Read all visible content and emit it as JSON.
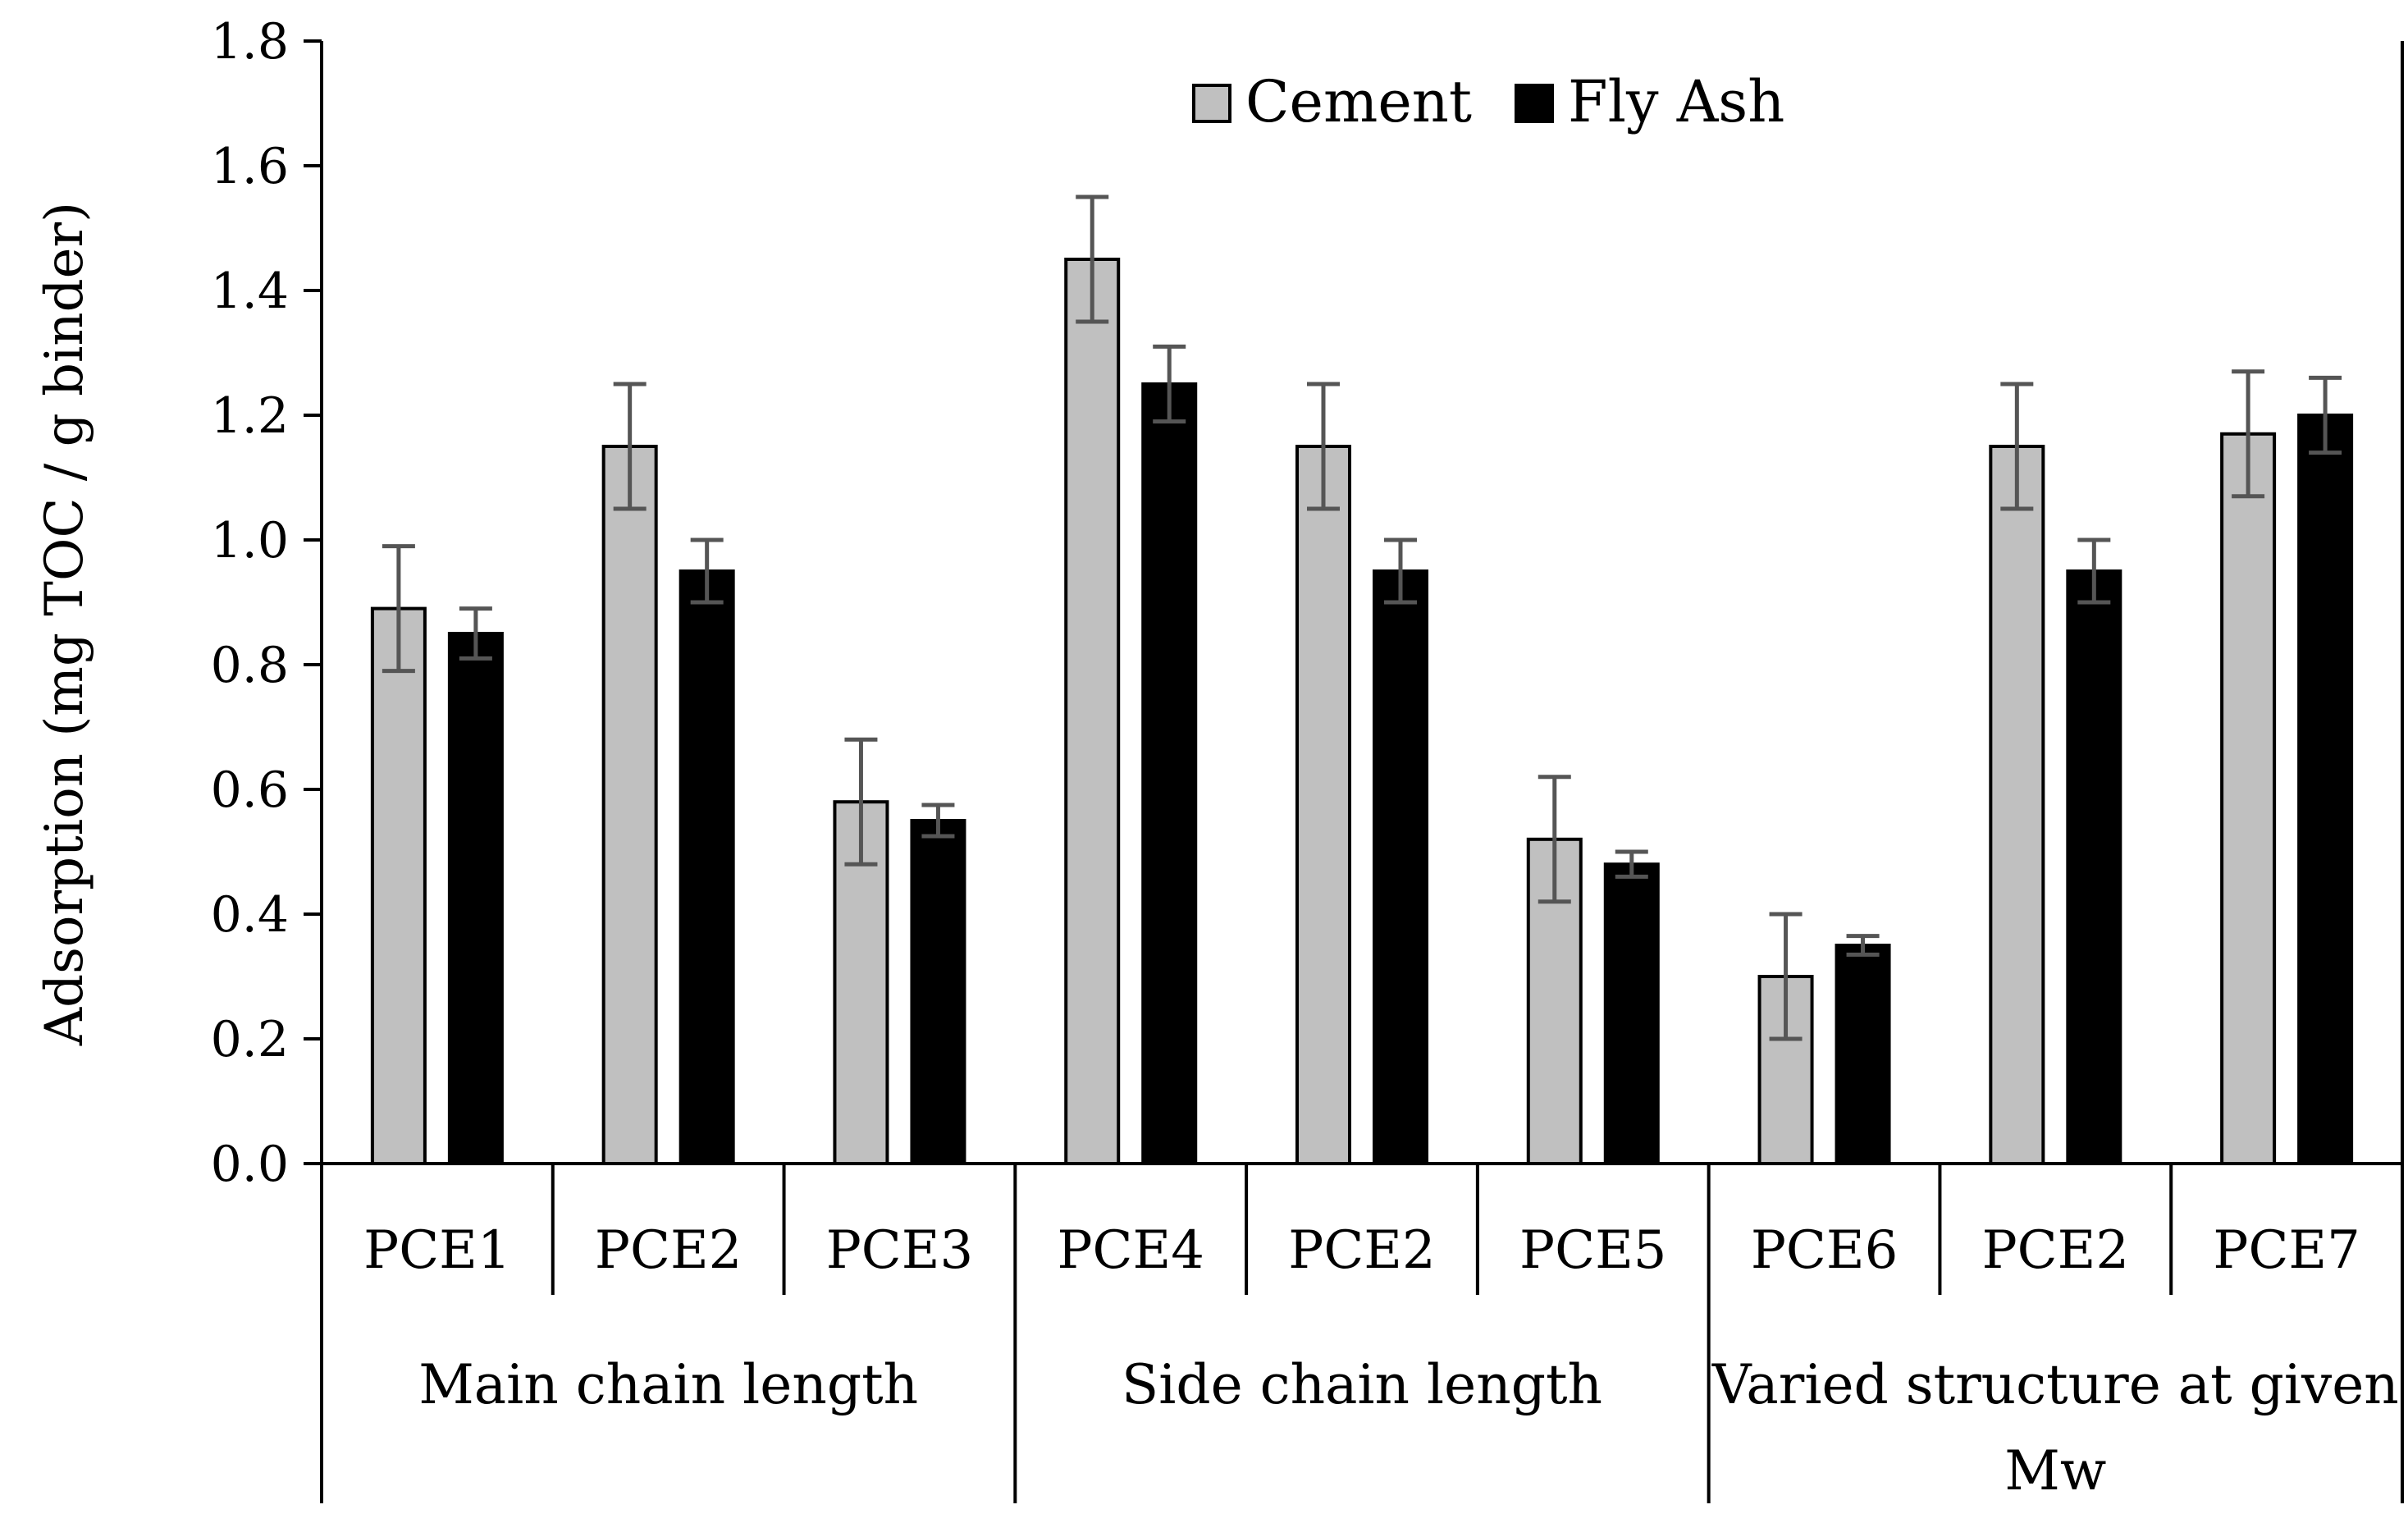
{
  "chart_data": {
    "type": "bar",
    "title": "",
    "xlabel": "",
    "ylabel": "Adsorption (mg TOC / g binder)",
    "ylim": [
      0,
      1.8
    ],
    "y_ticks": [
      "0.0",
      "0.2",
      "0.4",
      "0.6",
      "0.8",
      "1.0",
      "1.2",
      "1.4",
      "1.6",
      "1.8"
    ],
    "legend_position": "top-center",
    "categories": [
      "PCE1",
      "PCE2",
      "PCE3",
      "PCE4",
      "PCE2",
      "PCE5",
      "PCE6",
      "PCE2",
      "PCE7"
    ],
    "groups": [
      {
        "label": "Main chain length",
        "span": 3
      },
      {
        "label": "Side chain length",
        "span": 3
      },
      {
        "label": "Varied structure at given",
        "label_line2": "Mw",
        "span": 3
      }
    ],
    "series": [
      {
        "name": "Cement",
        "color": "#c0c0c0",
        "values": [
          0.89,
          1.15,
          0.58,
          1.45,
          1.15,
          0.52,
          0.3,
          1.15,
          1.17
        ],
        "errors": [
          0.1,
          0.1,
          0.1,
          0.1,
          0.1,
          0.1,
          0.1,
          0.1,
          0.1
        ]
      },
      {
        "name": "Fly Ash",
        "color": "#000000",
        "values": [
          0.85,
          0.95,
          0.55,
          1.25,
          0.95,
          0.48,
          0.35,
          0.95,
          1.2
        ],
        "errors": [
          0.04,
          0.05,
          0.025,
          0.06,
          0.05,
          0.02,
          0.015,
          0.05,
          0.06
        ]
      }
    ],
    "error_bar_color": "#555555"
  }
}
